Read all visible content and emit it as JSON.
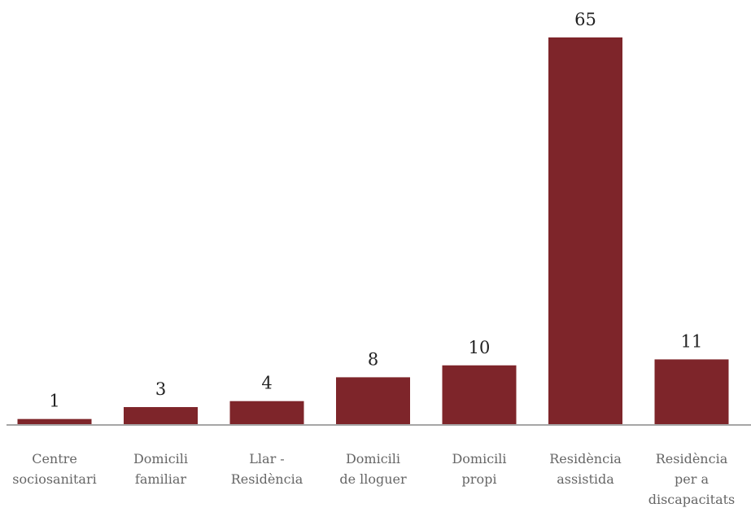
{
  "chart_data": {
    "type": "bar",
    "categories": [
      [
        "Centre",
        "sociosanitari"
      ],
      [
        "Domicili",
        "familiar"
      ],
      [
        "Llar -",
        "Residència"
      ],
      [
        "Domicili",
        "de lloguer"
      ],
      [
        "Domicili",
        "propi"
      ],
      [
        "Residència",
        "assistida"
      ],
      [
        "Residència",
        "per a",
        "discapacitats"
      ]
    ],
    "values": [
      1,
      3,
      4,
      8,
      10,
      65,
      11
    ],
    "value_labels": [
      "1",
      "3",
      "4",
      "8",
      "10",
      "65",
      "11"
    ],
    "ylim": [
      0,
      65
    ],
    "grid": false,
    "legend": "none",
    "colors": {
      "bar": "#7e252a",
      "axis": "#a6a6a6"
    }
  }
}
